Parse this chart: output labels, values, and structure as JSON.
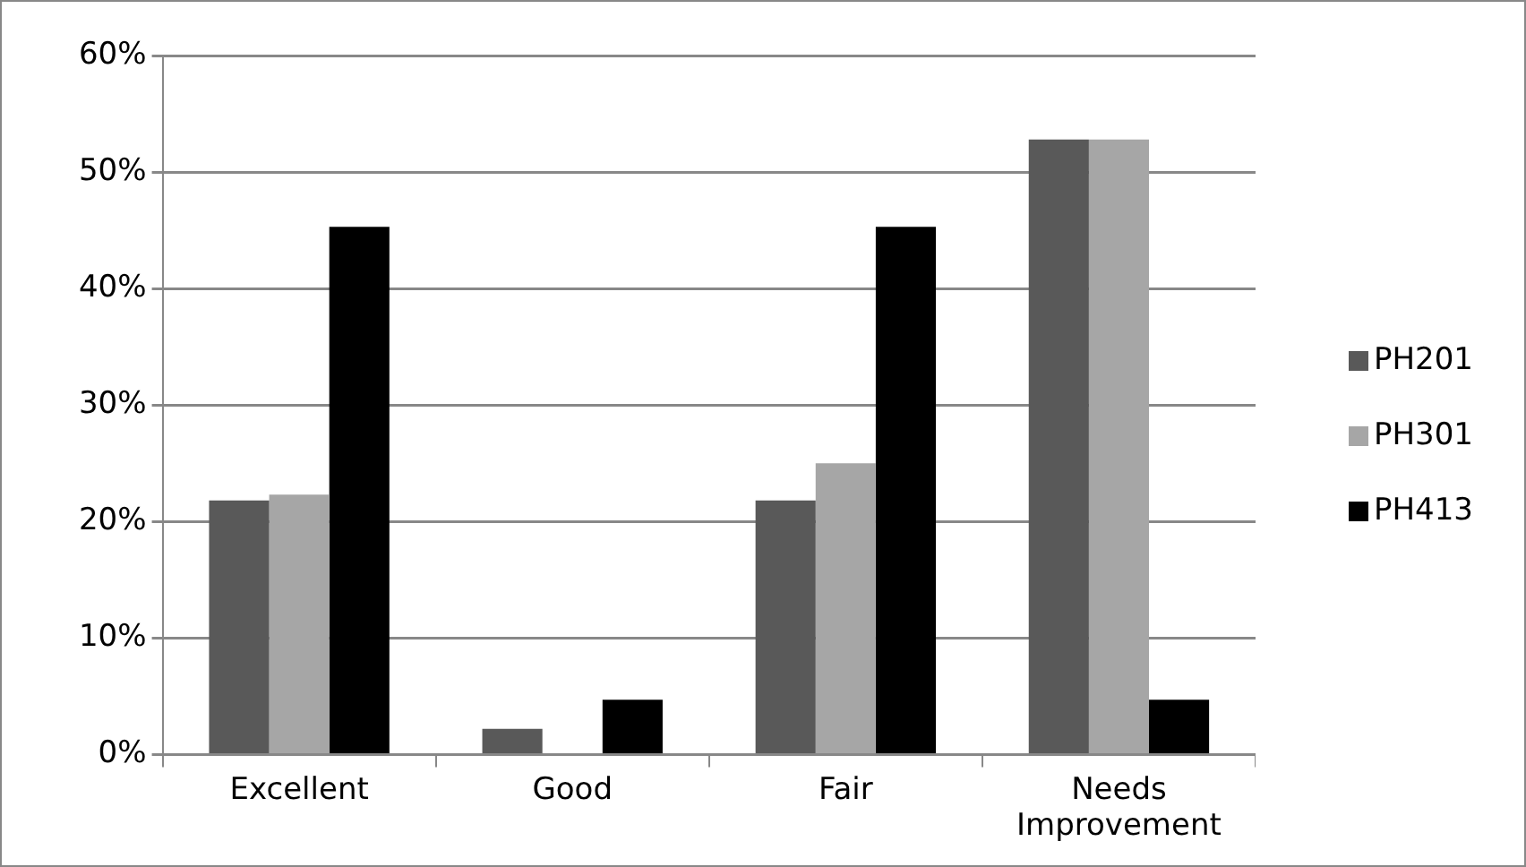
{
  "chart_data": {
    "type": "bar",
    "categories": [
      "Excellent",
      "Good",
      "Fair",
      "Needs Improvement"
    ],
    "series": [
      {
        "name": "PH201",
        "color": "#595959",
        "values": [
          21.8,
          2.2,
          21.8,
          52.8
        ]
      },
      {
        "name": "PH301",
        "color": "#a6a6a6",
        "values": [
          22.3,
          0,
          25.0,
          52.8
        ]
      },
      {
        "name": "PH413",
        "color": "#000000",
        "values": [
          45.3,
          4.7,
          45.3,
          4.7
        ]
      }
    ],
    "ylim": [
      0,
      60
    ],
    "yticks": [
      {
        "value": 0,
        "label": "0%"
      },
      {
        "value": 10,
        "label": "10%"
      },
      {
        "value": 20,
        "label": "20%"
      },
      {
        "value": 30,
        "label": "30%"
      },
      {
        "value": 40,
        "label": "40%"
      },
      {
        "value": 50,
        "label": "50%"
      },
      {
        "value": 60,
        "label": "60%"
      }
    ],
    "grid": "y",
    "legend": "right"
  }
}
